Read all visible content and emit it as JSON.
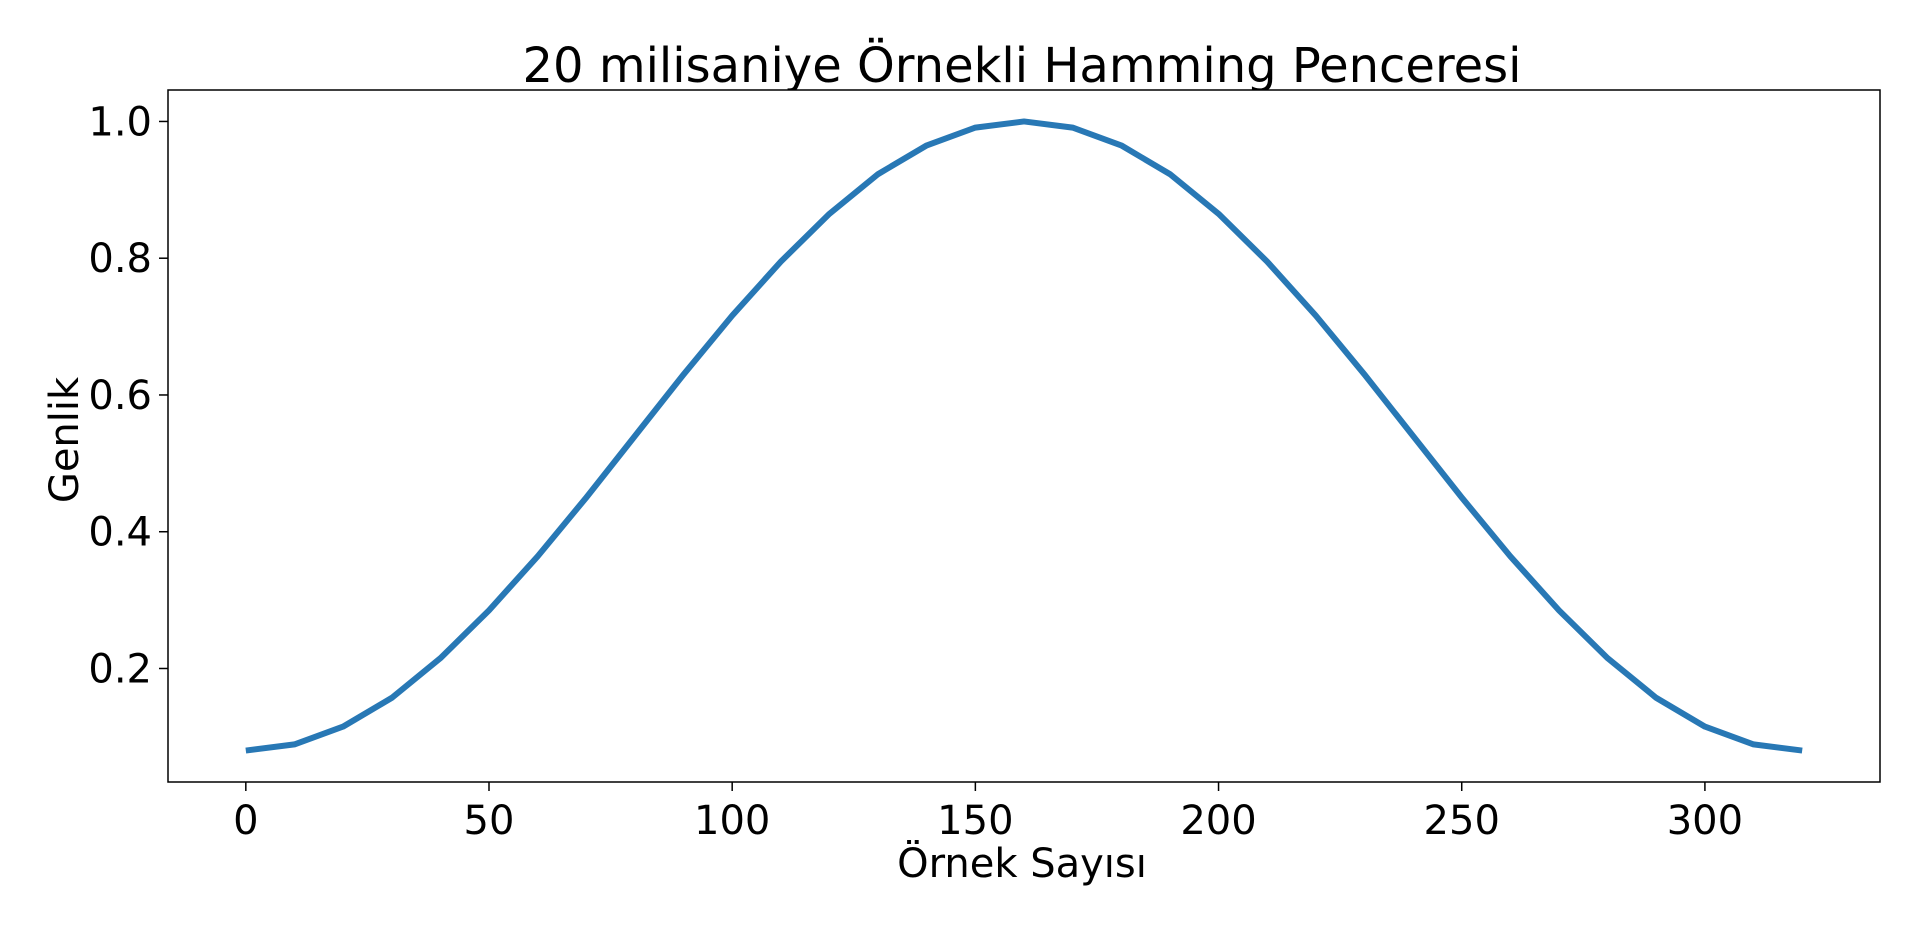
{
  "chart_data": {
    "type": "line",
    "title": "20 milisaniye Örnekli Hamming Penceresi",
    "xlabel": "Örnek Sayısı",
    "ylabel": "Genlik",
    "xlim": [
      -16,
      336
    ],
    "ylim": [
      0.034,
      1.046
    ],
    "xticks": [
      0,
      50,
      100,
      150,
      200,
      250,
      300
    ],
    "yticks": [
      0.2,
      0.4,
      0.6,
      0.8,
      1.0
    ],
    "xtick_labels": [
      "0",
      "50",
      "100",
      "150",
      "200",
      "250",
      "300"
    ],
    "ytick_labels": [
      "0.2",
      "0.4",
      "0.6",
      "0.8",
      "1.0"
    ],
    "grid": false,
    "series": [
      {
        "color": "#2878b5",
        "x": [
          0,
          10,
          20,
          30,
          40,
          50,
          60,
          70,
          80,
          90,
          100,
          110,
          120,
          130,
          140,
          150,
          160,
          170,
          180,
          190,
          200,
          210,
          220,
          230,
          240,
          250,
          260,
          270,
          280,
          290,
          300,
          310,
          320
        ],
        "y": [
          0.08,
          0.089,
          0.115,
          0.157,
          0.215,
          0.285,
          0.364,
          0.45,
          0.54,
          0.63,
          0.716,
          0.795,
          0.865,
          0.923,
          0.965,
          0.991,
          1.0,
          0.991,
          0.965,
          0.923,
          0.865,
          0.795,
          0.716,
          0.63,
          0.54,
          0.45,
          0.364,
          0.285,
          0.215,
          0.157,
          0.115,
          0.089,
          0.08
        ]
      }
    ]
  }
}
